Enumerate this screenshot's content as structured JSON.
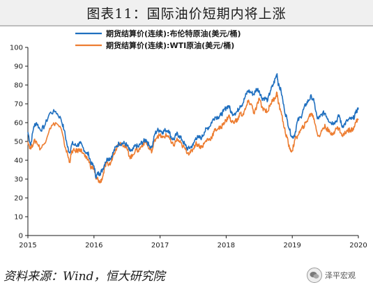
{
  "header": {
    "title": "图表11：国际油价短期内将上涨"
  },
  "source": {
    "text": "资料来源：Wind，恒大研究院"
  },
  "watermark": {
    "icon": "wechat-icon",
    "text": "泽平宏观"
  },
  "chart_data": {
    "type": "line",
    "title": "",
    "xlabel": "",
    "ylabel": "",
    "xlim": [
      2015,
      2020
    ],
    "ylim": [
      0,
      100
    ],
    "x_ticks": [
      "2015",
      "2016",
      "2017",
      "2018",
      "2019",
      "2020"
    ],
    "y_ticks": [
      0,
      10,
      20,
      30,
      40,
      50,
      60,
      70,
      80,
      90,
      100
    ],
    "grid": false,
    "legend_position": "top",
    "series": [
      {
        "name": "期货结算价(连续):布伦特原油(美元/桶)",
        "color": "#1f6fbf",
        "points": [
          [
            2015.0,
            55
          ],
          [
            2015.04,
            48
          ],
          [
            2015.09,
            58
          ],
          [
            2015.13,
            60
          ],
          [
            2015.19,
            56
          ],
          [
            2015.25,
            58
          ],
          [
            2015.33,
            65
          ],
          [
            2015.42,
            66
          ],
          [
            2015.5,
            62
          ],
          [
            2015.55,
            56
          ],
          [
            2015.6,
            47
          ],
          [
            2015.63,
            44
          ],
          [
            2015.67,
            49
          ],
          [
            2015.71,
            48
          ],
          [
            2015.75,
            48
          ],
          [
            2015.79,
            49
          ],
          [
            2015.83,
            47
          ],
          [
            2015.88,
            44
          ],
          [
            2015.92,
            43
          ],
          [
            2015.96,
            38
          ],
          [
            2016.0,
            37
          ],
          [
            2016.03,
            31
          ],
          [
            2016.06,
            33
          ],
          [
            2016.09,
            33
          ],
          [
            2016.13,
            35
          ],
          [
            2016.17,
            39
          ],
          [
            2016.21,
            41
          ],
          [
            2016.25,
            41
          ],
          [
            2016.29,
            44
          ],
          [
            2016.33,
            47
          ],
          [
            2016.38,
            49
          ],
          [
            2016.42,
            49
          ],
          [
            2016.46,
            49
          ],
          [
            2016.5,
            48
          ],
          [
            2016.54,
            45
          ],
          [
            2016.58,
            45
          ],
          [
            2016.63,
            48
          ],
          [
            2016.67,
            47
          ],
          [
            2016.71,
            49
          ],
          [
            2016.75,
            50
          ],
          [
            2016.79,
            51
          ],
          [
            2016.83,
            48
          ],
          [
            2016.88,
            47
          ],
          [
            2016.92,
            54
          ],
          [
            2016.96,
            56
          ],
          [
            2017.0,
            56
          ],
          [
            2017.04,
            55
          ],
          [
            2017.08,
            56
          ],
          [
            2017.13,
            56
          ],
          [
            2017.17,
            52
          ],
          [
            2017.21,
            51
          ],
          [
            2017.25,
            54
          ],
          [
            2017.29,
            53
          ],
          [
            2017.33,
            51
          ],
          [
            2017.38,
            48
          ],
          [
            2017.42,
            46
          ],
          [
            2017.46,
            47
          ],
          [
            2017.5,
            48
          ],
          [
            2017.54,
            52
          ],
          [
            2017.58,
            52
          ],
          [
            2017.63,
            52
          ],
          [
            2017.67,
            55
          ],
          [
            2017.71,
            57
          ],
          [
            2017.75,
            58
          ],
          [
            2017.79,
            61
          ],
          [
            2017.83,
            63
          ],
          [
            2017.88,
            63
          ],
          [
            2017.92,
            64
          ],
          [
            2017.96,
            66
          ],
          [
            2018.0,
            68
          ],
          [
            2018.04,
            69
          ],
          [
            2018.08,
            65
          ],
          [
            2018.13,
            65
          ],
          [
            2018.17,
            66
          ],
          [
            2018.21,
            69
          ],
          [
            2018.25,
            70
          ],
          [
            2018.29,
            74
          ],
          [
            2018.33,
            77
          ],
          [
            2018.38,
            76
          ],
          [
            2018.42,
            75
          ],
          [
            2018.46,
            78
          ],
          [
            2018.5,
            77
          ],
          [
            2018.54,
            73
          ],
          [
            2018.58,
            73
          ],
          [
            2018.63,
            72
          ],
          [
            2018.67,
            77
          ],
          [
            2018.71,
            80
          ],
          [
            2018.75,
            84
          ],
          [
            2018.77,
            86
          ],
          [
            2018.79,
            80
          ],
          [
            2018.83,
            77
          ],
          [
            2018.88,
            67
          ],
          [
            2018.92,
            62
          ],
          [
            2018.96,
            56
          ],
          [
            2019.0,
            52
          ],
          [
            2019.04,
            54
          ],
          [
            2019.08,
            61
          ],
          [
            2019.13,
            63
          ],
          [
            2019.17,
            67
          ],
          [
            2019.21,
            70
          ],
          [
            2019.25,
            72
          ],
          [
            2019.29,
            74
          ],
          [
            2019.33,
            71
          ],
          [
            2019.38,
            62
          ],
          [
            2019.42,
            63
          ],
          [
            2019.46,
            65
          ],
          [
            2019.5,
            65
          ],
          [
            2019.54,
            62
          ],
          [
            2019.58,
            60
          ],
          [
            2019.63,
            60
          ],
          [
            2019.67,
            61
          ],
          [
            2019.71,
            64
          ],
          [
            2019.75,
            58
          ],
          [
            2019.79,
            59
          ],
          [
            2019.83,
            61
          ],
          [
            2019.88,
            62
          ],
          [
            2019.92,
            62
          ],
          [
            2019.96,
            65
          ],
          [
            2020.0,
            68
          ]
        ]
      },
      {
        "name": "期货结算价(连续):WTI原油(美元/桶)",
        "color": "#ed7d31",
        "points": [
          [
            2015.0,
            50
          ],
          [
            2015.04,
            46
          ],
          [
            2015.09,
            50
          ],
          [
            2015.13,
            50
          ],
          [
            2015.19,
            46
          ],
          [
            2015.25,
            49
          ],
          [
            2015.33,
            57
          ],
          [
            2015.42,
            60
          ],
          [
            2015.5,
            57
          ],
          [
            2015.55,
            49
          ],
          [
            2015.6,
            43
          ],
          [
            2015.63,
            39
          ],
          [
            2015.67,
            45
          ],
          [
            2015.71,
            45
          ],
          [
            2015.75,
            45
          ],
          [
            2015.79,
            46
          ],
          [
            2015.83,
            44
          ],
          [
            2015.88,
            41
          ],
          [
            2015.92,
            40
          ],
          [
            2015.96,
            36
          ],
          [
            2016.0,
            36
          ],
          [
            2016.03,
            30
          ],
          [
            2016.06,
            30
          ],
          [
            2016.09,
            28
          ],
          [
            2016.13,
            31
          ],
          [
            2016.17,
            37
          ],
          [
            2016.21,
            38
          ],
          [
            2016.25,
            38
          ],
          [
            2016.29,
            43
          ],
          [
            2016.33,
            46
          ],
          [
            2016.38,
            49
          ],
          [
            2016.42,
            49
          ],
          [
            2016.46,
            48
          ],
          [
            2016.5,
            46
          ],
          [
            2016.54,
            42
          ],
          [
            2016.58,
            42
          ],
          [
            2016.63,
            46
          ],
          [
            2016.67,
            45
          ],
          [
            2016.71,
            47
          ],
          [
            2016.75,
            49
          ],
          [
            2016.79,
            50
          ],
          [
            2016.83,
            46
          ],
          [
            2016.88,
            45
          ],
          [
            2016.92,
            51
          ],
          [
            2016.96,
            53
          ],
          [
            2017.0,
            53
          ],
          [
            2017.04,
            52
          ],
          [
            2017.08,
            53
          ],
          [
            2017.13,
            53
          ],
          [
            2017.17,
            49
          ],
          [
            2017.21,
            48
          ],
          [
            2017.25,
            51
          ],
          [
            2017.29,
            50
          ],
          [
            2017.33,
            48
          ],
          [
            2017.38,
            46
          ],
          [
            2017.42,
            44
          ],
          [
            2017.46,
            44
          ],
          [
            2017.5,
            46
          ],
          [
            2017.54,
            49
          ],
          [
            2017.58,
            48
          ],
          [
            2017.63,
            47
          ],
          [
            2017.67,
            49
          ],
          [
            2017.71,
            51
          ],
          [
            2017.75,
            51
          ],
          [
            2017.79,
            53
          ],
          [
            2017.83,
            56
          ],
          [
            2017.88,
            57
          ],
          [
            2017.92,
            57
          ],
          [
            2017.96,
            60
          ],
          [
            2018.0,
            61
          ],
          [
            2018.04,
            64
          ],
          [
            2018.08,
            60
          ],
          [
            2018.13,
            61
          ],
          [
            2018.17,
            61
          ],
          [
            2018.21,
            65
          ],
          [
            2018.25,
            64
          ],
          [
            2018.29,
            67
          ],
          [
            2018.33,
            71
          ],
          [
            2018.38,
            70
          ],
          [
            2018.42,
            65
          ],
          [
            2018.46,
            68
          ],
          [
            2018.5,
            73
          ],
          [
            2018.54,
            68
          ],
          [
            2018.58,
            67
          ],
          [
            2018.63,
            66
          ],
          [
            2018.67,
            70
          ],
          [
            2018.71,
            72
          ],
          [
            2018.75,
            74
          ],
          [
            2018.77,
            76
          ],
          [
            2018.79,
            70
          ],
          [
            2018.83,
            66
          ],
          [
            2018.88,
            57
          ],
          [
            2018.92,
            52
          ],
          [
            2018.96,
            46
          ],
          [
            2019.0,
            45
          ],
          [
            2019.04,
            51
          ],
          [
            2019.08,
            53
          ],
          [
            2019.13,
            56
          ],
          [
            2019.17,
            58
          ],
          [
            2019.21,
            60
          ],
          [
            2019.25,
            63
          ],
          [
            2019.29,
            65
          ],
          [
            2019.33,
            62
          ],
          [
            2019.38,
            54
          ],
          [
            2019.42,
            53
          ],
          [
            2019.46,
            57
          ],
          [
            2019.5,
            58
          ],
          [
            2019.54,
            56
          ],
          [
            2019.58,
            54
          ],
          [
            2019.63,
            55
          ],
          [
            2019.67,
            57
          ],
          [
            2019.71,
            57
          ],
          [
            2019.75,
            53
          ],
          [
            2019.79,
            54
          ],
          [
            2019.83,
            56
          ],
          [
            2019.88,
            56
          ],
          [
            2019.92,
            57
          ],
          [
            2019.96,
            60
          ],
          [
            2020.0,
            62
          ]
        ]
      }
    ]
  }
}
